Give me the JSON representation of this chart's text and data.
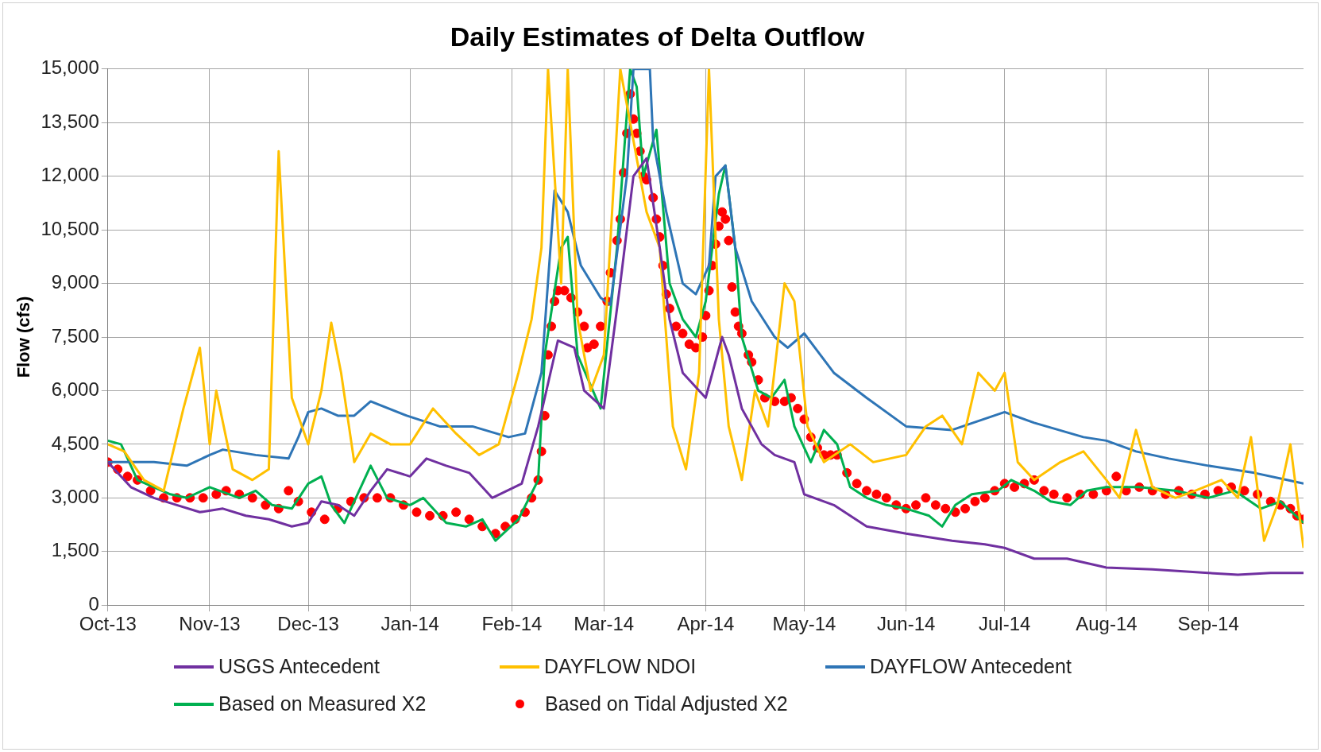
{
  "chart_data": {
    "type": "line",
    "title": "Daily Estimates of Delta Outflow",
    "ylabel": "Flow (cfs)",
    "grid": true,
    "legend": "bottom",
    "xlim": [
      "2013-10-01",
      "2014-09-30"
    ],
    "xticks": [
      {
        "value": "2013-10-01",
        "label": "Oct-13"
      },
      {
        "value": "2013-11-01",
        "label": "Nov-13"
      },
      {
        "value": "2013-12-01",
        "label": "Dec-13"
      },
      {
        "value": "2014-01-01",
        "label": "Jan-14"
      },
      {
        "value": "2014-02-01",
        "label": "Feb-14"
      },
      {
        "value": "2014-03-01",
        "label": "Mar-14"
      },
      {
        "value": "2014-04-01",
        "label": "Apr-14"
      },
      {
        "value": "2014-05-01",
        "label": "May-14"
      },
      {
        "value": "2014-06-01",
        "label": "Jun-14"
      },
      {
        "value": "2014-07-01",
        "label": "Jul-14"
      },
      {
        "value": "2014-08-01",
        "label": "Aug-14"
      },
      {
        "value": "2014-09-01",
        "label": "Sep-14"
      }
    ],
    "ylim": [
      0,
      15000
    ],
    "yticks": [
      {
        "value": 0,
        "label": "0"
      },
      {
        "value": 1500,
        "label": "1,500"
      },
      {
        "value": 3000,
        "label": "3,000"
      },
      {
        "value": 4500,
        "label": "4,500"
      },
      {
        "value": 6000,
        "label": "6,000"
      },
      {
        "value": 7500,
        "label": "7,500"
      },
      {
        "value": 9000,
        "label": "9,000"
      },
      {
        "value": 10500,
        "label": "10,500"
      },
      {
        "value": 12000,
        "label": "12,000"
      },
      {
        "value": 13500,
        "label": "13,500"
      },
      {
        "value": 15000,
        "label": "15,000"
      }
    ],
    "series": [
      {
        "name": "USGS Antecedent",
        "color": "#7030a0",
        "x": [
          "2013-10-01",
          "2013-10-08",
          "2013-10-15",
          "2013-10-22",
          "2013-10-29",
          "2013-11-05",
          "2013-11-12",
          "2013-11-19",
          "2013-11-26",
          "2013-12-01",
          "2013-12-05",
          "2013-12-10",
          "2013-12-15",
          "2013-12-20",
          "2013-12-25",
          "2014-01-01",
          "2014-01-06",
          "2014-01-12",
          "2014-01-19",
          "2014-01-26",
          "2014-02-04",
          "2014-02-09",
          "2014-02-15",
          "2014-02-20",
          "2014-02-23",
          "2014-03-01",
          "2014-03-06",
          "2014-03-10",
          "2014-03-14",
          "2014-03-18",
          "2014-03-21",
          "2014-03-25",
          "2014-03-30",
          "2014-04-01",
          "2014-04-06",
          "2014-04-08",
          "2014-04-12",
          "2014-04-18",
          "2014-04-22",
          "2014-04-28",
          "2014-05-01",
          "2014-05-10",
          "2014-05-20",
          "2014-06-01",
          "2014-06-15",
          "2014-06-25",
          "2014-07-01",
          "2014-07-10",
          "2014-07-20",
          "2014-08-01",
          "2014-08-15",
          "2014-09-01",
          "2014-09-10",
          "2014-09-20",
          "2014-09-30"
        ],
        "values": [
          4000,
          3300,
          3000,
          2800,
          2600,
          2700,
          2500,
          2400,
          2200,
          2300,
          2900,
          2800,
          2500,
          3200,
          3800,
          3600,
          4100,
          3900,
          3700,
          3000,
          3400,
          5000,
          7400,
          7200,
          6000,
          5500,
          9000,
          12000,
          12500,
          10000,
          8000,
          6500,
          6000,
          5800,
          7500,
          7000,
          5500,
          4500,
          4200,
          4000,
          3100,
          2800,
          2200,
          2000,
          1800,
          1700,
          1600,
          1300,
          1300,
          1050,
          1000,
          900,
          850,
          900,
          900
        ]
      },
      {
        "name": "DAYFLOW NDOI",
        "color": "#ffc000",
        "x": [
          "2013-10-01",
          "2013-10-06",
          "2013-10-12",
          "2013-10-18",
          "2013-10-24",
          "2013-10-29",
          "2013-11-01",
          "2013-11-03",
          "2013-11-08",
          "2013-11-14",
          "2013-11-19",
          "2013-11-22",
          "2013-11-26",
          "2013-12-01",
          "2013-12-05",
          "2013-12-08",
          "2013-12-11",
          "2013-12-15",
          "2013-12-20",
          "2013-12-26",
          "2014-01-01",
          "2014-01-08",
          "2014-01-15",
          "2014-01-22",
          "2014-01-28",
          "2014-02-03",
          "2014-02-07",
          "2014-02-10",
          "2014-02-12",
          "2014-02-16",
          "2014-02-18",
          "2014-02-21",
          "2014-02-25",
          "2014-03-01",
          "2014-03-06",
          "2014-03-14",
          "2014-03-18",
          "2014-03-22",
          "2014-03-26",
          "2014-03-30",
          "2014-04-02",
          "2014-04-05",
          "2014-04-08",
          "2014-04-12",
          "2014-04-16",
          "2014-04-20",
          "2014-04-25",
          "2014-04-28",
          "2014-05-02",
          "2014-05-07",
          "2014-05-15",
          "2014-05-22",
          "2014-06-01",
          "2014-06-07",
          "2014-06-12",
          "2014-06-18",
          "2014-06-23",
          "2014-06-28",
          "2014-07-01",
          "2014-07-05",
          "2014-07-10",
          "2014-07-18",
          "2014-07-25",
          "2014-08-01",
          "2014-08-05",
          "2014-08-10",
          "2014-08-15",
          "2014-08-22",
          "2014-08-28",
          "2014-09-05",
          "2014-09-10",
          "2014-09-14",
          "2014-09-18",
          "2014-09-22",
          "2014-09-26",
          "2014-09-30"
        ],
        "values": [
          4500,
          4300,
          3500,
          3200,
          5500,
          7200,
          4500,
          6000,
          3800,
          3500,
          3800,
          12700,
          5800,
          4500,
          6000,
          7900,
          6500,
          4000,
          4800,
          4500,
          4500,
          5500,
          4800,
          4200,
          4500,
          6500,
          8000,
          10000,
          15000,
          9000,
          15000,
          8000,
          6000,
          7000,
          15000,
          11000,
          10000,
          5000,
          3800,
          6500,
          15000,
          8000,
          5000,
          3500,
          6000,
          5000,
          9000,
          8500,
          5000,
          4000,
          4500,
          4000,
          4200,
          5000,
          5300,
          4500,
          6500,
          6000,
          6500,
          4000,
          3500,
          4000,
          4300,
          3500,
          3000,
          4900,
          3300,
          3000,
          3200,
          3500,
          3000,
          4700,
          1800,
          2800,
          4500,
          1600
        ]
      },
      {
        "name": "DAYFLOW Antecedent",
        "color": "#2e75b6",
        "x": [
          "2013-10-01",
          "2013-10-15",
          "2013-10-25",
          "2013-11-01",
          "2013-11-05",
          "2013-11-15",
          "2013-11-25",
          "2013-11-28",
          "2013-12-01",
          "2013-12-05",
          "2013-12-10",
          "2013-12-15",
          "2013-12-20",
          "2013-12-31",
          "2014-01-10",
          "2014-01-20",
          "2014-01-31",
          "2014-02-05",
          "2014-02-10",
          "2014-02-14",
          "2014-02-18",
          "2014-02-22",
          "2014-02-28",
          "2014-03-03",
          "2014-03-08",
          "2014-03-10",
          "2014-03-15",
          "2014-03-16",
          "2014-03-20",
          "2014-03-25",
          "2014-03-29",
          "2014-04-02",
          "2014-04-04",
          "2014-04-07",
          "2014-04-10",
          "2014-04-15",
          "2014-04-22",
          "2014-04-26",
          "2014-05-01",
          "2014-05-10",
          "2014-05-20",
          "2014-06-01",
          "2014-06-15",
          "2014-07-01",
          "2014-07-10",
          "2014-07-25",
          "2014-08-01",
          "2014-08-10",
          "2014-08-20",
          "2014-09-01",
          "2014-09-15",
          "2014-09-25",
          "2014-09-30"
        ],
        "values": [
          4000,
          4000,
          3900,
          4200,
          4350,
          4200,
          4100,
          4700,
          5400,
          5500,
          5300,
          5300,
          5700,
          5300,
          5000,
          5000,
          4700,
          4800,
          6500,
          11600,
          11000,
          9500,
          8600,
          8400,
          12000,
          15000,
          15000,
          13000,
          11000,
          9000,
          8700,
          9500,
          12000,
          12300,
          10000,
          8500,
          7500,
          7200,
          7600,
          6500,
          5800,
          5000,
          4900,
          5400,
          5100,
          4700,
          4600,
          4300,
          4100,
          3900,
          3700,
          3500,
          3400
        ]
      },
      {
        "name": "Based on Measured X2",
        "color": "#00b050",
        "x": [
          "2013-10-01",
          "2013-10-05",
          "2013-10-10",
          "2013-10-15",
          "2013-10-20",
          "2013-10-25",
          "2013-11-01",
          "2013-11-10",
          "2013-11-15",
          "2013-11-20",
          "2013-11-26",
          "2013-12-01",
          "2013-12-05",
          "2013-12-08",
          "2013-12-12",
          "2013-12-18",
          "2013-12-20",
          "2013-12-25",
          "2014-01-01",
          "2014-01-05",
          "2014-01-12",
          "2014-01-18",
          "2014-01-23",
          "2014-01-27",
          "2014-02-03",
          "2014-02-09",
          "2014-02-11",
          "2014-02-16",
          "2014-02-18",
          "2014-02-21",
          "2014-02-28",
          "2014-03-05",
          "2014-03-09",
          "2014-03-11",
          "2014-03-13",
          "2014-03-17",
          "2014-03-21",
          "2014-03-25",
          "2014-03-29",
          "2014-04-01",
          "2014-04-05",
          "2014-04-07",
          "2014-04-10",
          "2014-04-12",
          "2014-04-17",
          "2014-04-21",
          "2014-04-25",
          "2014-04-28",
          "2014-05-03",
          "2014-05-07",
          "2014-05-11",
          "2014-05-15",
          "2014-05-20",
          "2014-05-26",
          "2014-06-01",
          "2014-06-08",
          "2014-06-12",
          "2014-06-16",
          "2014-06-21",
          "2014-06-29",
          "2014-07-03",
          "2014-07-10",
          "2014-07-15",
          "2014-07-21",
          "2014-07-26",
          "2014-08-01",
          "2014-08-11",
          "2014-08-22",
          "2014-09-01",
          "2014-09-09",
          "2014-09-17",
          "2014-09-23",
          "2014-09-30"
        ],
        "values": [
          4600,
          4500,
          3500,
          3300,
          3100,
          3000,
          3300,
          3000,
          3200,
          2800,
          2700,
          3400,
          3600,
          2800,
          2300,
          3500,
          3900,
          3000,
          2800,
          3000,
          2300,
          2200,
          2400,
          1800,
          2400,
          3500,
          7000,
          10000,
          10300,
          7000,
          5500,
          10000,
          15000,
          14500,
          12000,
          13300,
          9000,
          8000,
          7500,
          8500,
          11500,
          12300,
          10000,
          7500,
          6000,
          5800,
          6300,
          5000,
          4000,
          4900,
          4500,
          3300,
          3000,
          2800,
          2700,
          2500,
          2200,
          2800,
          3100,
          3200,
          3500,
          3200,
          2900,
          2800,
          3200,
          3300,
          3300,
          3200,
          3000,
          3200,
          2700,
          2900,
          2300
        ]
      },
      {
        "name": "Based on Tidal Adjusted X2",
        "color": "#ff0000",
        "type": "scatter",
        "x": [
          "2013-10-01",
          "2013-10-04",
          "2013-10-07",
          "2013-10-10",
          "2013-10-14",
          "2013-10-18",
          "2013-10-22",
          "2013-10-26",
          "2013-10-30",
          "2013-11-03",
          "2013-11-06",
          "2013-11-10",
          "2013-11-14",
          "2013-11-18",
          "2013-11-22",
          "2013-11-25",
          "2013-11-28",
          "2013-12-02",
          "2013-12-06",
          "2013-12-10",
          "2013-12-14",
          "2013-12-18",
          "2013-12-22",
          "2013-12-26",
          "2013-12-30",
          "2014-01-03",
          "2014-01-07",
          "2014-01-11",
          "2014-01-15",
          "2014-01-19",
          "2014-01-23",
          "2014-01-27",
          "2014-01-30",
          "2014-02-02",
          "2014-02-05",
          "2014-02-07",
          "2014-02-09",
          "2014-02-10",
          "2014-02-11",
          "2014-02-12",
          "2014-02-13",
          "2014-02-14",
          "2014-02-15",
          "2014-02-17",
          "2014-02-19",
          "2014-02-21",
          "2014-02-23",
          "2014-02-24",
          "2014-02-26",
          "2014-02-28",
          "2014-03-02",
          "2014-03-03",
          "2014-03-05",
          "2014-03-06",
          "2014-03-07",
          "2014-03-08",
          "2014-03-09",
          "2014-03-10",
          "2014-03-11",
          "2014-03-12",
          "2014-03-13",
          "2014-03-14",
          "2014-03-16",
          "2014-03-17",
          "2014-03-18",
          "2014-03-19",
          "2014-03-20",
          "2014-03-21",
          "2014-03-23",
          "2014-03-25",
          "2014-03-27",
          "2014-03-29",
          "2014-03-31",
          "2014-04-01",
          "2014-04-02",
          "2014-04-03",
          "2014-04-04",
          "2014-04-05",
          "2014-04-06",
          "2014-04-07",
          "2014-04-08",
          "2014-04-09",
          "2014-04-10",
          "2014-04-11",
          "2014-04-12",
          "2014-04-14",
          "2014-04-15",
          "2014-04-17",
          "2014-04-19",
          "2014-04-22",
          "2014-04-25",
          "2014-04-27",
          "2014-04-29",
          "2014-05-01",
          "2014-05-03",
          "2014-05-05",
          "2014-05-07",
          "2014-05-09",
          "2014-05-11",
          "2014-05-14",
          "2014-05-17",
          "2014-05-20",
          "2014-05-23",
          "2014-05-26",
          "2014-05-29",
          "2014-06-01",
          "2014-06-04",
          "2014-06-07",
          "2014-06-10",
          "2014-06-13",
          "2014-06-16",
          "2014-06-19",
          "2014-06-22",
          "2014-06-25",
          "2014-06-28",
          "2014-07-01",
          "2014-07-04",
          "2014-07-07",
          "2014-07-10",
          "2014-07-13",
          "2014-07-16",
          "2014-07-20",
          "2014-07-24",
          "2014-07-28",
          "2014-08-01",
          "2014-08-04",
          "2014-08-07",
          "2014-08-11",
          "2014-08-15",
          "2014-08-19",
          "2014-08-23",
          "2014-08-27",
          "2014-08-31",
          "2014-09-04",
          "2014-09-08",
          "2014-09-12",
          "2014-09-16",
          "2014-09-20",
          "2014-09-23",
          "2014-09-26",
          "2014-09-28",
          "2014-09-30"
        ],
        "values": [
          4000,
          3800,
          3600,
          3500,
          3200,
          3000,
          3000,
          3000,
          3000,
          3100,
          3200,
          3100,
          3000,
          2800,
          2700,
          3200,
          2900,
          2600,
          2400,
          2700,
          2900,
          3000,
          3000,
          3000,
          2800,
          2600,
          2500,
          2500,
          2600,
          2400,
          2200,
          2000,
          2200,
          2400,
          2600,
          3000,
          3500,
          4300,
          5300,
          7000,
          7800,
          8500,
          8800,
          8800,
          8600,
          8200,
          7800,
          7200,
          7300,
          7800,
          8500,
          9300,
          10200,
          10800,
          12100,
          13200,
          14300,
          13600,
          13200,
          12700,
          12000,
          11900,
          11400,
          10800,
          10300,
          9500,
          8700,
          8300,
          7800,
          7600,
          7300,
          7200,
          7500,
          8100,
          8800,
          9500,
          10100,
          10600,
          11000,
          10800,
          10200,
          8900,
          8200,
          7800,
          7600,
          7000,
          6800,
          6300,
          5800,
          5700,
          5700,
          5800,
          5500,
          5200,
          4700,
          4400,
          4200,
          4200,
          4200,
          3700,
          3400,
          3200,
          3100,
          3000,
          2800,
          2700,
          2800,
          3000,
          2800,
          2700,
          2600,
          2700,
          2900,
          3000,
          3200,
          3400,
          3300,
          3400,
          3500,
          3200,
          3100,
          3000,
          3100,
          3100,
          3200,
          3600,
          3200,
          3300,
          3200,
          3100,
          3200,
          3100,
          3100,
          3200,
          3300,
          3200,
          3100,
          2900,
          2800,
          2700,
          2500,
          2400
        ]
      }
    ]
  }
}
